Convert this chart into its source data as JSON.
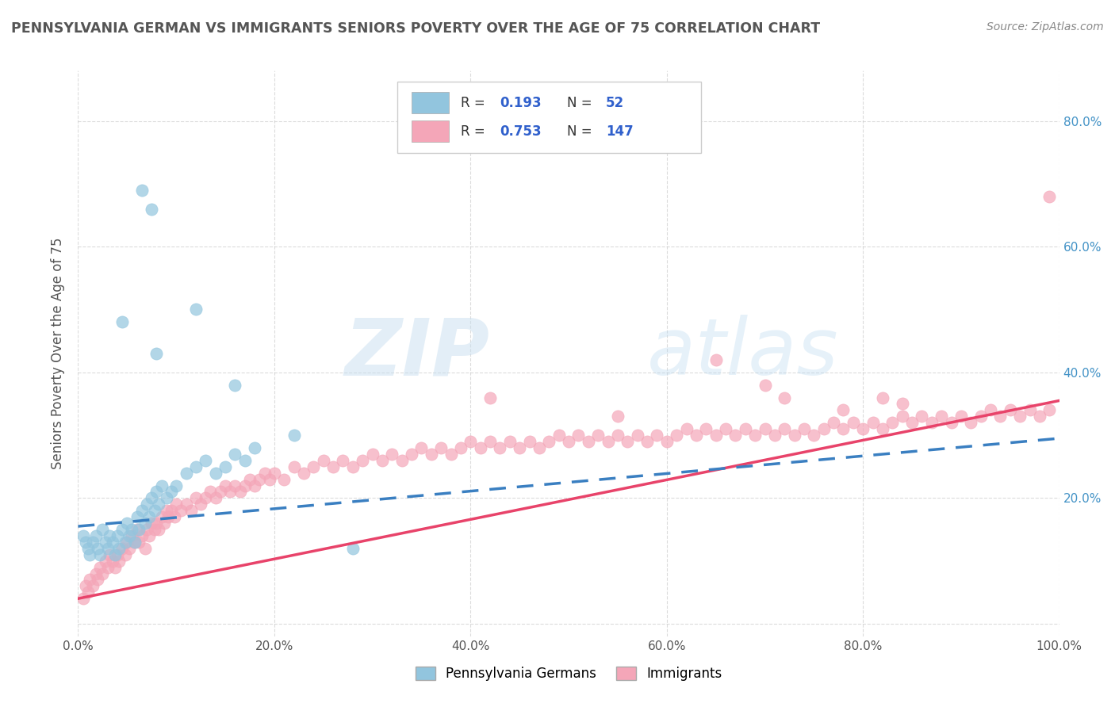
{
  "title": "PENNSYLVANIA GERMAN VS IMMIGRANTS SENIORS POVERTY OVER THE AGE OF 75 CORRELATION CHART",
  "source": "Source: ZipAtlas.com",
  "ylabel": "Seniors Poverty Over the Age of 75",
  "xlim": [
    0,
    1.0
  ],
  "ylim": [
    -0.02,
    0.88
  ],
  "x_ticks": [
    0.0,
    0.2,
    0.4,
    0.6,
    0.8,
    1.0
  ],
  "x_tick_labels": [
    "0.0%",
    "20.0%",
    "40.0%",
    "60.0%",
    "80.0%",
    "100.0%"
  ],
  "y_ticks": [
    0.0,
    0.2,
    0.4,
    0.6,
    0.8
  ],
  "y_tick_labels": [
    "",
    "",
    "",
    "",
    ""
  ],
  "right_y_ticks": [
    0.2,
    0.4,
    0.6,
    0.8
  ],
  "right_y_tick_labels": [
    "20.0%",
    "40.0%",
    "60.0%",
    "80.0%"
  ],
  "blue_color": "#92c5de",
  "pink_color": "#f4a6b8",
  "blue_line_color": "#3a7fc1",
  "pink_line_color": "#e8436a",
  "blue_scatter": [
    [
      0.005,
      0.14
    ],
    [
      0.008,
      0.13
    ],
    [
      0.01,
      0.12
    ],
    [
      0.012,
      0.11
    ],
    [
      0.015,
      0.13
    ],
    [
      0.018,
      0.14
    ],
    [
      0.02,
      0.12
    ],
    [
      0.022,
      0.11
    ],
    [
      0.025,
      0.15
    ],
    [
      0.028,
      0.13
    ],
    [
      0.03,
      0.12
    ],
    [
      0.032,
      0.14
    ],
    [
      0.035,
      0.13
    ],
    [
      0.038,
      0.11
    ],
    [
      0.04,
      0.14
    ],
    [
      0.042,
      0.12
    ],
    [
      0.045,
      0.15
    ],
    [
      0.048,
      0.13
    ],
    [
      0.05,
      0.16
    ],
    [
      0.052,
      0.14
    ],
    [
      0.055,
      0.15
    ],
    [
      0.058,
      0.13
    ],
    [
      0.06,
      0.17
    ],
    [
      0.062,
      0.15
    ],
    [
      0.065,
      0.18
    ],
    [
      0.068,
      0.16
    ],
    [
      0.07,
      0.19
    ],
    [
      0.072,
      0.17
    ],
    [
      0.075,
      0.2
    ],
    [
      0.078,
      0.18
    ],
    [
      0.08,
      0.21
    ],
    [
      0.082,
      0.19
    ],
    [
      0.085,
      0.22
    ],
    [
      0.09,
      0.2
    ],
    [
      0.095,
      0.21
    ],
    [
      0.1,
      0.22
    ],
    [
      0.11,
      0.24
    ],
    [
      0.12,
      0.25
    ],
    [
      0.13,
      0.26
    ],
    [
      0.14,
      0.24
    ],
    [
      0.15,
      0.25
    ],
    [
      0.16,
      0.27
    ],
    [
      0.17,
      0.26
    ],
    [
      0.18,
      0.28
    ],
    [
      0.065,
      0.69
    ],
    [
      0.075,
      0.66
    ],
    [
      0.045,
      0.48
    ],
    [
      0.12,
      0.5
    ],
    [
      0.08,
      0.43
    ],
    [
      0.16,
      0.38
    ],
    [
      0.22,
      0.3
    ],
    [
      0.28,
      0.12
    ]
  ],
  "pink_scatter": [
    [
      0.005,
      0.04
    ],
    [
      0.008,
      0.06
    ],
    [
      0.01,
      0.05
    ],
    [
      0.012,
      0.07
    ],
    [
      0.015,
      0.06
    ],
    [
      0.018,
      0.08
    ],
    [
      0.02,
      0.07
    ],
    [
      0.022,
      0.09
    ],
    [
      0.025,
      0.08
    ],
    [
      0.028,
      0.1
    ],
    [
      0.03,
      0.09
    ],
    [
      0.032,
      0.11
    ],
    [
      0.035,
      0.1
    ],
    [
      0.038,
      0.09
    ],
    [
      0.04,
      0.11
    ],
    [
      0.042,
      0.1
    ],
    [
      0.045,
      0.12
    ],
    [
      0.048,
      0.11
    ],
    [
      0.05,
      0.13
    ],
    [
      0.052,
      0.12
    ],
    [
      0.055,
      0.14
    ],
    [
      0.058,
      0.13
    ],
    [
      0.06,
      0.15
    ],
    [
      0.062,
      0.13
    ],
    [
      0.065,
      0.14
    ],
    [
      0.068,
      0.12
    ],
    [
      0.07,
      0.15
    ],
    [
      0.072,
      0.14
    ],
    [
      0.075,
      0.16
    ],
    [
      0.078,
      0.15
    ],
    [
      0.08,
      0.16
    ],
    [
      0.082,
      0.15
    ],
    [
      0.085,
      0.17
    ],
    [
      0.088,
      0.16
    ],
    [
      0.09,
      0.18
    ],
    [
      0.092,
      0.17
    ],
    [
      0.095,
      0.18
    ],
    [
      0.098,
      0.17
    ],
    [
      0.1,
      0.19
    ],
    [
      0.105,
      0.18
    ],
    [
      0.11,
      0.19
    ],
    [
      0.115,
      0.18
    ],
    [
      0.12,
      0.2
    ],
    [
      0.125,
      0.19
    ],
    [
      0.13,
      0.2
    ],
    [
      0.135,
      0.21
    ],
    [
      0.14,
      0.2
    ],
    [
      0.145,
      0.21
    ],
    [
      0.15,
      0.22
    ],
    [
      0.155,
      0.21
    ],
    [
      0.16,
      0.22
    ],
    [
      0.165,
      0.21
    ],
    [
      0.17,
      0.22
    ],
    [
      0.175,
      0.23
    ],
    [
      0.18,
      0.22
    ],
    [
      0.185,
      0.23
    ],
    [
      0.19,
      0.24
    ],
    [
      0.195,
      0.23
    ],
    [
      0.2,
      0.24
    ],
    [
      0.21,
      0.23
    ],
    [
      0.22,
      0.25
    ],
    [
      0.23,
      0.24
    ],
    [
      0.24,
      0.25
    ],
    [
      0.25,
      0.26
    ],
    [
      0.26,
      0.25
    ],
    [
      0.27,
      0.26
    ],
    [
      0.28,
      0.25
    ],
    [
      0.29,
      0.26
    ],
    [
      0.3,
      0.27
    ],
    [
      0.31,
      0.26
    ],
    [
      0.32,
      0.27
    ],
    [
      0.33,
      0.26
    ],
    [
      0.34,
      0.27
    ],
    [
      0.35,
      0.28
    ],
    [
      0.36,
      0.27
    ],
    [
      0.37,
      0.28
    ],
    [
      0.38,
      0.27
    ],
    [
      0.39,
      0.28
    ],
    [
      0.4,
      0.29
    ],
    [
      0.41,
      0.28
    ],
    [
      0.42,
      0.29
    ],
    [
      0.43,
      0.28
    ],
    [
      0.44,
      0.29
    ],
    [
      0.45,
      0.28
    ],
    [
      0.46,
      0.29
    ],
    [
      0.47,
      0.28
    ],
    [
      0.48,
      0.29
    ],
    [
      0.49,
      0.3
    ],
    [
      0.5,
      0.29
    ],
    [
      0.51,
      0.3
    ],
    [
      0.52,
      0.29
    ],
    [
      0.53,
      0.3
    ],
    [
      0.54,
      0.29
    ],
    [
      0.55,
      0.3
    ],
    [
      0.56,
      0.29
    ],
    [
      0.57,
      0.3
    ],
    [
      0.58,
      0.29
    ],
    [
      0.59,
      0.3
    ],
    [
      0.6,
      0.29
    ],
    [
      0.61,
      0.3
    ],
    [
      0.62,
      0.31
    ],
    [
      0.63,
      0.3
    ],
    [
      0.64,
      0.31
    ],
    [
      0.65,
      0.3
    ],
    [
      0.66,
      0.31
    ],
    [
      0.67,
      0.3
    ],
    [
      0.68,
      0.31
    ],
    [
      0.69,
      0.3
    ],
    [
      0.7,
      0.31
    ],
    [
      0.71,
      0.3
    ],
    [
      0.72,
      0.31
    ],
    [
      0.73,
      0.3
    ],
    [
      0.74,
      0.31
    ],
    [
      0.75,
      0.3
    ],
    [
      0.76,
      0.31
    ],
    [
      0.77,
      0.32
    ],
    [
      0.78,
      0.31
    ],
    [
      0.79,
      0.32
    ],
    [
      0.8,
      0.31
    ],
    [
      0.81,
      0.32
    ],
    [
      0.82,
      0.31
    ],
    [
      0.83,
      0.32
    ],
    [
      0.84,
      0.33
    ],
    [
      0.85,
      0.32
    ],
    [
      0.86,
      0.33
    ],
    [
      0.87,
      0.32
    ],
    [
      0.88,
      0.33
    ],
    [
      0.89,
      0.32
    ],
    [
      0.9,
      0.33
    ],
    [
      0.91,
      0.32
    ],
    [
      0.92,
      0.33
    ],
    [
      0.93,
      0.34
    ],
    [
      0.94,
      0.33
    ],
    [
      0.95,
      0.34
    ],
    [
      0.96,
      0.33
    ],
    [
      0.97,
      0.34
    ],
    [
      0.98,
      0.33
    ],
    [
      0.99,
      0.34
    ],
    [
      0.42,
      0.36
    ],
    [
      0.55,
      0.33
    ],
    [
      0.65,
      0.42
    ],
    [
      0.7,
      0.38
    ],
    [
      0.72,
      0.36
    ],
    [
      0.78,
      0.34
    ],
    [
      0.82,
      0.36
    ],
    [
      0.84,
      0.35
    ],
    [
      0.99,
      0.68
    ]
  ],
  "blue_trendline": [
    [
      0.0,
      0.155
    ],
    [
      1.0,
      0.295
    ]
  ],
  "pink_trendline": [
    [
      0.0,
      0.04
    ],
    [
      1.0,
      0.355
    ]
  ],
  "grid_color": "#cccccc",
  "bg_color": "#ffffff",
  "bottom_legend": [
    "Pennsylvania Germans",
    "Immigrants"
  ],
  "title_color": "#555555",
  "axis_color": "#555555",
  "right_tick_color": "#4292c6"
}
